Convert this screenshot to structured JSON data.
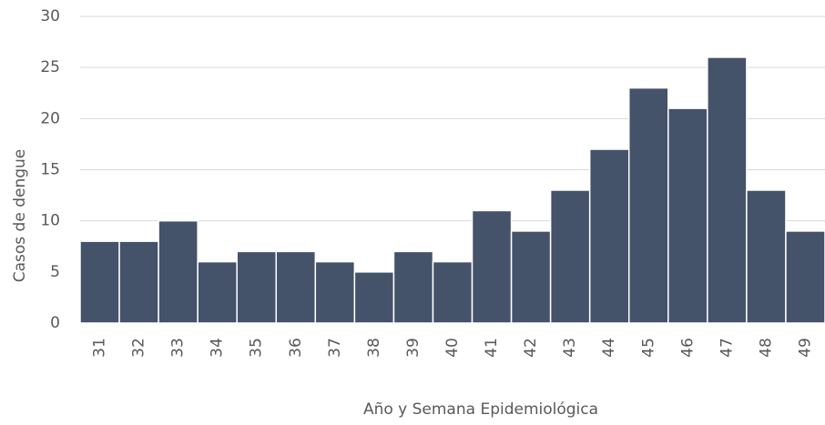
{
  "chart_data": {
    "type": "bar",
    "x_label": "Año y Semana Epidemiológica",
    "y_label": "Casos de dengue",
    "categories": [
      "31",
      "32",
      "33",
      "34",
      "35",
      "36",
      "37",
      "38",
      "39",
      "40",
      "41",
      "42",
      "43",
      "44",
      "45",
      "46",
      "47",
      "48",
      "49"
    ],
    "values": [
      8,
      8,
      10,
      6,
      7,
      7,
      6,
      5,
      7,
      6,
      11,
      9,
      13,
      17,
      23,
      21,
      26,
      13,
      9
    ],
    "color": "#44526a",
    "ylim": [
      0,
      30
    ],
    "yticks": [
      0,
      5,
      10,
      15,
      20,
      25,
      30
    ],
    "grid": true
  }
}
